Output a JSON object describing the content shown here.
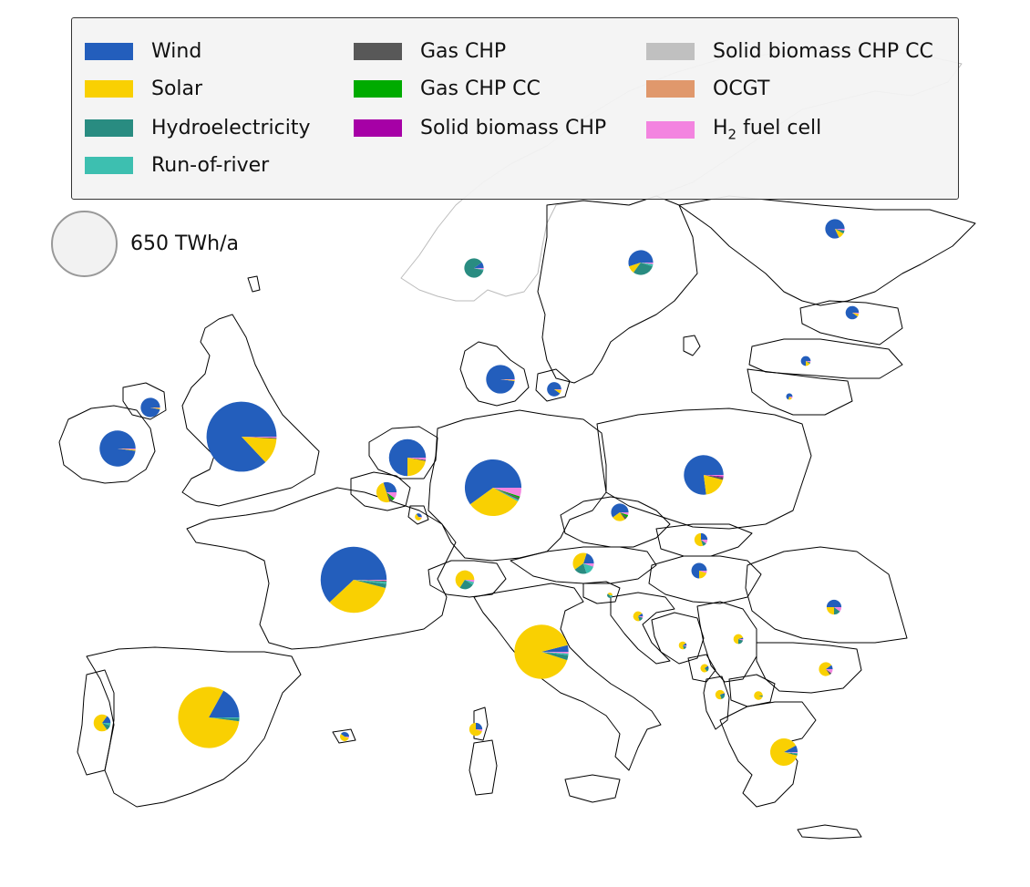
{
  "legend": {
    "items": [
      {
        "key": "wind",
        "label": "Wind",
        "color": "#235ebc"
      },
      {
        "key": "solar",
        "label": "Solar",
        "color": "#f9d002"
      },
      {
        "key": "hydro",
        "label": "Hydroelectricity",
        "color": "#298c81"
      },
      {
        "key": "ror",
        "label": "Run-of-river",
        "color": "#3dbfb0"
      },
      {
        "key": "gaschp",
        "label": "Gas CHP",
        "color": "#585858"
      },
      {
        "key": "gaschpcc",
        "label": "Gas CHP CC",
        "color": "#00ab00"
      },
      {
        "key": "biochp",
        "label": "Solid biomass CHP",
        "color": "#a600a6"
      },
      {
        "key": "biochpcc",
        "label": "Solid biomass CHP CC",
        "color": "#c0c0c0"
      },
      {
        "key": "ocgt",
        "label": "OCGT",
        "color": "#e0986c"
      },
      {
        "key": "h2fc",
        "label": "H2 fuel cell",
        "label_main": "H",
        "label_sub": "2",
        "label_rest": " fuel cell",
        "color": "#f384e0"
      }
    ],
    "size_reference": {
      "label": "650 TWh/a",
      "value": 650
    }
  },
  "chart_data": {
    "type": "pie",
    "units": "TWh/a",
    "technologies": [
      "Wind",
      "Solar",
      "Hydroelectricity",
      "Run-of-river",
      "Gas CHP",
      "Gas CHP CC",
      "Solid biomass CHP",
      "Solid biomass CHP CC",
      "OCGT",
      "H2 fuel cell"
    ],
    "nodes": [
      {
        "id": "GB",
        "total": 720,
        "shares": {
          "wind": 0.87,
          "solar": 0.12,
          "gaschp": 0.005,
          "h2fc": 0.005
        }
      },
      {
        "id": "FR",
        "total": 640,
        "shares": {
          "wind": 0.62,
          "solar": 0.34,
          "hydro": 0.02,
          "ror": 0.01,
          "gaschp": 0.005,
          "h2fc": 0.005
        }
      },
      {
        "id": "DE",
        "total": 470,
        "shares": {
          "wind": 0.6,
          "solar": 0.32,
          "ror": 0.01,
          "gaschp": 0.01,
          "gaschpcc": 0.01,
          "h2fc": 0.05
        }
      },
      {
        "id": "IT",
        "total": 430,
        "shares": {
          "solar": 0.91,
          "wind": 0.04,
          "hydro": 0.03,
          "ror": 0.01,
          "h2fc": 0.01
        }
      },
      {
        "id": "ES",
        "total": 550,
        "shares": {
          "solar": 0.81,
          "wind": 0.17,
          "hydro": 0.015,
          "ror": 0.005
        }
      },
      {
        "id": "PL",
        "total": 230,
        "shares": {
          "wind": 0.77,
          "solar": 0.19,
          "gaschp": 0.02,
          "biochp": 0.01,
          "h2fc": 0.01
        }
      },
      {
        "id": "NL",
        "total": 200,
        "shares": {
          "wind": 0.75,
          "solar": 0.22,
          "gaschp": 0.01,
          "h2fc": 0.02
        }
      },
      {
        "id": "IE",
        "total": 190,
        "shares": {
          "wind": 0.98,
          "solar": 0.01,
          "h2fc": 0.01
        }
      },
      {
        "id": "DK",
        "total": 120,
        "shares": {
          "wind": 0.98,
          "solar": 0.01,
          "h2fc": 0.01
        }
      },
      {
        "id": "SE",
        "total": 90,
        "shares": {
          "wind": 0.55,
          "solar": 0.1,
          "hydro": 0.3,
          "ror": 0.03,
          "h2fc": 0.02
        }
      },
      {
        "id": "GR",
        "total": 110,
        "shares": {
          "solar": 0.88,
          "wind": 0.08,
          "hydro": 0.02,
          "ror": 0.01,
          "h2fc": 0.01
        }
      },
      {
        "id": "BE",
        "total": 60,
        "shares": {
          "wind": 0.3,
          "solar": 0.5,
          "gaschp": 0.05,
          "gaschpcc": 0.05,
          "h2fc": 0.1
        }
      },
      {
        "id": "NO",
        "total": 55,
        "shares": {
          "hydro": 0.86,
          "wind": 0.1,
          "ror": 0.02,
          "h2fc": 0.02
        }
      },
      {
        "id": "NI",
        "total": 55,
        "shares": {
          "wind": 0.97,
          "solar": 0.02,
          "h2fc": 0.01
        }
      },
      {
        "id": "AT",
        "total": 65,
        "shares": {
          "solar": 0.4,
          "wind": 0.2,
          "hydro": 0.2,
          "ror": 0.15,
          "h2fc": 0.05
        }
      },
      {
        "id": "CH",
        "total": 52,
        "shares": {
          "solar": 0.66,
          "hydro": 0.25,
          "ror": 0.05,
          "h2fc": 0.04
        }
      },
      {
        "id": "FI",
        "total": 55,
        "shares": {
          "wind": 0.82,
          "solar": 0.1,
          "hydro": 0.05,
          "h2fc": 0.03
        }
      },
      {
        "id": "CZ",
        "total": 45,
        "shares": {
          "wind": 0.6,
          "solar": 0.25,
          "gaschp": 0.05,
          "gaschpcc": 0.05,
          "h2fc": 0.05
        }
      },
      {
        "id": "PT",
        "total": 42,
        "shares": {
          "solar": 0.7,
          "wind": 0.15,
          "hydro": 0.1,
          "ror": 0.05
        }
      },
      {
        "id": "HU",
        "total": 35,
        "shares": {
          "wind": 0.75,
          "solar": 0.2,
          "h2fc": 0.05
        }
      },
      {
        "id": "RO",
        "total": 32,
        "shares": {
          "wind": 0.5,
          "solar": 0.25,
          "hydro": 0.15,
          "h2fc": 0.1
        }
      },
      {
        "id": "EE",
        "total": 26,
        "shares": {
          "wind": 0.9,
          "solar": 0.07,
          "h2fc": 0.03
        }
      },
      {
        "id": "BG",
        "total": 28,
        "shares": {
          "solar": 0.75,
          "wind": 0.1,
          "h2fc": 0.1,
          "gaschp": 0.05
        }
      },
      {
        "id": "SK",
        "total": 25,
        "shares": {
          "solar": 0.55,
          "wind": 0.25,
          "hydro": 0.1,
          "h2fc": 0.1
        }
      },
      {
        "id": "DK-E",
        "total": 30,
        "shares": {
          "wind": 0.9,
          "solar": 0.08,
          "h2fc": 0.02
        }
      },
      {
        "id": "COR",
        "total": 25,
        "shares": {
          "solar": 0.7,
          "wind": 0.25,
          "h2fc": 0.05
        }
      },
      {
        "id": "LV",
        "total": 14,
        "shares": {
          "wind": 0.75,
          "solar": 0.15,
          "hydro": 0.05,
          "h2fc": 0.05
        }
      },
      {
        "id": "HR",
        "total": 14,
        "shares": {
          "solar": 0.7,
          "wind": 0.1,
          "hydro": 0.15,
          "h2fc": 0.05
        }
      },
      {
        "id": "RS",
        "total": 14,
        "shares": {
          "solar": 0.7,
          "hydro": 0.2,
          "wind": 0.05,
          "h2fc": 0.05
        }
      },
      {
        "id": "BA",
        "total": 9,
        "shares": {
          "solar": 0.7,
          "hydro": 0.15,
          "wind": 0.1,
          "h2fc": 0.05
        }
      },
      {
        "id": "ME",
        "total": 10,
        "shares": {
          "solar": 0.75,
          "hydro": 0.15,
          "wind": 0.1
        }
      },
      {
        "id": "AL",
        "total": 13,
        "shares": {
          "solar": 0.75,
          "hydro": 0.2,
          "wind": 0.05
        }
      },
      {
        "id": "MK",
        "total": 11,
        "shares": {
          "solar": 0.95,
          "hydro": 0.05
        }
      },
      {
        "id": "BAL",
        "total": 12,
        "shares": {
          "solar": 0.55,
          "wind": 0.4,
          "h2fc": 0.05
        }
      },
      {
        "id": "LU",
        "total": 7,
        "shares": {
          "solar": 0.6,
          "wind": 0.35,
          "h2fc": 0.05
        }
      },
      {
        "id": "LT",
        "total": 6,
        "shares": {
          "wind": 0.7,
          "solar": 0.2,
          "h2fc": 0.1
        }
      },
      {
        "id": "SI",
        "total": 4,
        "shares": {
          "hydro": 0.4,
          "solar": 0.4,
          "ror": 0.2
        }
      }
    ]
  }
}
